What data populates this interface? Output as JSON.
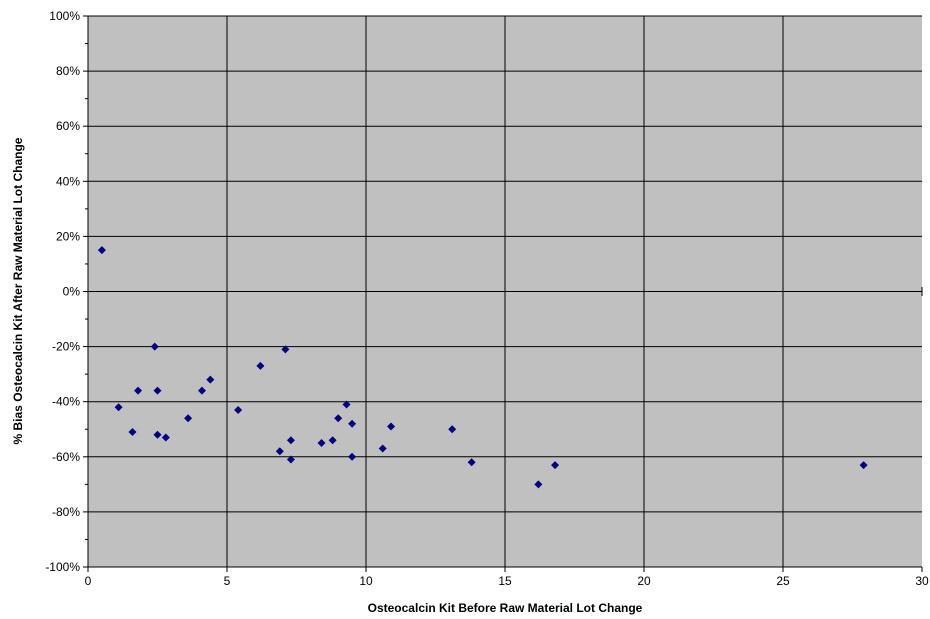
{
  "chart_data": {
    "type": "scatter",
    "title": "",
    "xlabel": "Osteocalcin Kit Before Raw Material Lot Change",
    "ylabel": "% Bias Osteocalcin Kit After Raw Material Lot Change",
    "xlim": [
      0,
      30
    ],
    "ylim": [
      -100,
      100
    ],
    "x_ticks": [
      "0",
      "5",
      "10",
      "15",
      "20",
      "25",
      "30"
    ],
    "y_ticks": [
      "100%",
      "80%",
      "60%",
      "40%",
      "20%",
      "0%",
      "-20%",
      "-40%",
      "-60%",
      "-80%",
      "-100%"
    ],
    "grid": true,
    "legend": "none",
    "colors": {
      "plot_background": "#c0c0c0",
      "marker": "#000080",
      "gridline": "#000000"
    },
    "points": [
      {
        "x": 0.5,
        "y": 15
      },
      {
        "x": 1.1,
        "y": -42
      },
      {
        "x": 1.6,
        "y": -51
      },
      {
        "x": 1.8,
        "y": -36
      },
      {
        "x": 2.4,
        "y": -20
      },
      {
        "x": 2.5,
        "y": -36
      },
      {
        "x": 2.5,
        "y": -52
      },
      {
        "x": 2.8,
        "y": -53
      },
      {
        "x": 3.6,
        "y": -46
      },
      {
        "x": 4.1,
        "y": -36
      },
      {
        "x": 4.4,
        "y": -32
      },
      {
        "x": 5.4,
        "y": -43
      },
      {
        "x": 6.2,
        "y": -27
      },
      {
        "x": 6.9,
        "y": -58
      },
      {
        "x": 7.1,
        "y": -21
      },
      {
        "x": 7.3,
        "y": -54
      },
      {
        "x": 7.3,
        "y": -61
      },
      {
        "x": 8.4,
        "y": -55
      },
      {
        "x": 8.8,
        "y": -54
      },
      {
        "x": 9.0,
        "y": -46
      },
      {
        "x": 9.3,
        "y": -41
      },
      {
        "x": 9.5,
        "y": -48
      },
      {
        "x": 9.5,
        "y": -60
      },
      {
        "x": 10.6,
        "y": -57
      },
      {
        "x": 10.9,
        "y": -49
      },
      {
        "x": 13.1,
        "y": -50
      },
      {
        "x": 13.8,
        "y": -62
      },
      {
        "x": 16.2,
        "y": -70
      },
      {
        "x": 16.8,
        "y": -63
      },
      {
        "x": 27.9,
        "y": -63
      }
    ]
  }
}
